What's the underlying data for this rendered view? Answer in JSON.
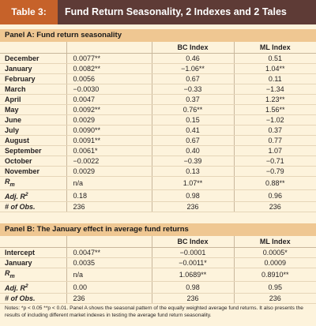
{
  "header": {
    "tab_label": "Table 3:",
    "title": "Fund Return Seasonality, 2 Indexes and 2 Tales"
  },
  "panel_a": {
    "title": "Panel A: Fund return seasonality",
    "columns": [
      "",
      "",
      "BC Index",
      "ML Index"
    ],
    "rows": [
      {
        "label": "December",
        "fund": "0.0077**",
        "bc": "0.46",
        "ml": "0.51"
      },
      {
        "label": "January",
        "fund": "0.0082**",
        "bc": "−1.06**",
        "ml": "1.04**"
      },
      {
        "label": "February",
        "fund": "0.0056",
        "bc": "0.67",
        "ml": "0.11"
      },
      {
        "label": "March",
        "fund": "−0.0030",
        "bc": "−0.33",
        "ml": "−1.34"
      },
      {
        "label": "April",
        "fund": "0.0047",
        "bc": "0.37",
        "ml": "1.23**"
      },
      {
        "label": "May",
        "fund": "0.0092**",
        "bc": "0.76**",
        "ml": "1.56**"
      },
      {
        "label": "June",
        "fund": "0.0029",
        "bc": "0.15",
        "ml": "−1.02"
      },
      {
        "label": "July",
        "fund": "0.0090**",
        "bc": "0.41",
        "ml": "0.37"
      },
      {
        "label": "August",
        "fund": "0.0091**",
        "bc": "0.67",
        "ml": "0.77"
      },
      {
        "label": "September",
        "fund": "0.0061*",
        "bc": "0.40",
        "ml": "1.07"
      },
      {
        "label": "October",
        "fund": "−0.0022",
        "bc": "−0.39",
        "ml": "−0.71"
      },
      {
        "label": "November",
        "fund": "0.0029",
        "bc": "0.13",
        "ml": "−0.79"
      },
      {
        "label": "Rm",
        "fund": "n/a",
        "bc": "1.07**",
        "ml": "0.88**"
      },
      {
        "label": "Adj. R2",
        "fund": "0.18",
        "bc": "0.98",
        "ml": "0.96"
      },
      {
        "label": "# of Obs.",
        "fund": "236",
        "bc": "236",
        "ml": "236"
      }
    ]
  },
  "panel_b": {
    "title": "Panel B: The January effect in average fund returns",
    "columns": [
      "",
      "",
      "BC Index",
      "ML Index"
    ],
    "rows": [
      {
        "label": "Intercept",
        "fund": "0.0047**",
        "bc": "−0.0001",
        "ml": "0.0005*"
      },
      {
        "label": "January",
        "fund": "0.0035",
        "bc": "−0.0011*",
        "ml": "0.0009"
      },
      {
        "label": "Rm",
        "fund": "n/a",
        "bc": "1.0689**",
        "ml": "0.8910**"
      },
      {
        "label": "Adj. R2",
        "fund": "0.00",
        "bc": "0.98",
        "ml": "0.95"
      },
      {
        "label": "# of Obs.",
        "fund": "236",
        "bc": "236",
        "ml": "236"
      }
    ]
  },
  "footnote": "Notes: *p < 0.05 **p < 0.01. Panel A shows the seasonal pattern of the equally weighted average fund returns. It also presents the results of including different market indexes in testing the average fund return seasonality."
}
